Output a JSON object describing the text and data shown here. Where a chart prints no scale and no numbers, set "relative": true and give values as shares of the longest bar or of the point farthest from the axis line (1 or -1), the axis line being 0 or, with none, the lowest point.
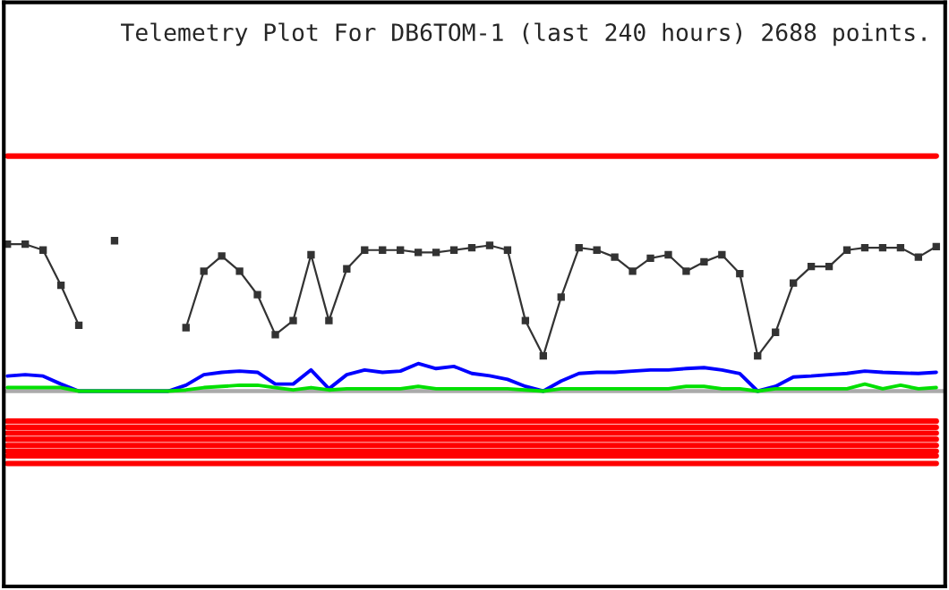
{
  "chart_data": {
    "type": "line",
    "title": "Telemetry Plot For DB6TOM-1 (last 240 hours) 2688 points.",
    "relative": true,
    "legend": false,
    "categories": [
      null,
      null,
      null,
      null,
      null,
      null,
      null,
      null,
      null,
      null,
      null,
      null,
      null,
      null,
      null,
      null,
      null,
      null,
      null,
      null,
      null,
      null,
      null,
      null,
      null,
      null,
      null,
      null,
      null,
      null,
      null,
      null,
      null,
      null,
      null,
      null,
      null,
      null,
      null,
      null,
      null,
      null,
      null,
      null,
      null,
      null,
      null,
      null,
      null,
      null,
      null,
      null,
      null
    ],
    "series": [
      {
        "color": "#ff0000",
        "values": [
          1,
          1,
          1,
          1,
          1,
          1,
          1,
          1,
          1,
          1,
          1,
          1,
          1,
          1,
          1,
          1,
          1,
          1,
          1,
          1,
          1,
          1,
          1,
          1,
          1,
          1,
          1,
          1,
          1,
          1,
          1,
          1,
          1,
          1,
          1,
          1,
          1,
          1,
          1,
          1,
          1,
          1,
          1,
          1,
          1,
          1,
          1,
          1,
          1,
          1,
          1,
          1,
          1
        ]
      },
      {
        "color": "#333333",
        "marker": "square",
        "values": [
          0.625,
          0.625,
          0.6,
          0.45,
          0.28,
          null,
          0.64,
          null,
          null,
          null,
          0.27,
          0.51,
          0.575,
          0.51,
          0.41,
          0.24,
          0.3,
          0.58,
          0.3,
          0.52,
          0.6,
          0.6,
          0.6,
          0.59,
          0.59,
          0.6,
          0.61,
          0.62,
          0.6,
          0.3,
          0.15,
          0.4,
          0.61,
          0.6,
          0.57,
          0.51,
          0.565,
          0.58,
          0.51,
          0.55,
          0.58,
          0.5,
          0.15,
          0.25,
          0.46,
          0.53,
          0.53,
          0.6,
          0.61,
          0.61,
          0.61,
          0.57,
          0.615
        ]
      },
      {
        "color": "#0000ff",
        "values": [
          0.064,
          0.07,
          0.064,
          0.03,
          0,
          0,
          0,
          0,
          0,
          0,
          0.025,
          0.07,
          0.08,
          0.085,
          0.08,
          0.03,
          0.03,
          0.09,
          0.01,
          0.07,
          0.09,
          0.08,
          0.085,
          0.117,
          0.096,
          0.105,
          0.075,
          0.065,
          0.05,
          0.02,
          0,
          0.043,
          0.075,
          0.08,
          0.08,
          0.085,
          0.09,
          0.09,
          0.096,
          0.1,
          0.09,
          0.075,
          0,
          0.02,
          0.06,
          0.064,
          0.07,
          0.075,
          0.085,
          0.08,
          0.077,
          0.075,
          0.08
        ]
      },
      {
        "color": "#00e000",
        "values": [
          0.015,
          0.015,
          0.015,
          0.015,
          0,
          0,
          0,
          0,
          0,
          0,
          0.005,
          0.015,
          0.02,
          0.025,
          0.025,
          0.015,
          0.005,
          0.015,
          0.005,
          0.01,
          0.01,
          0.01,
          0.01,
          0.02,
          0.01,
          0.01,
          0.01,
          0.01,
          0.01,
          0.005,
          0,
          0.01,
          0.01,
          0.01,
          0.01,
          0.01,
          0.01,
          0.01,
          0.02,
          0.02,
          0.01,
          0.01,
          0,
          0.01,
          0.01,
          0.01,
          0.01,
          0.01,
          0.03,
          0.01,
          0.025,
          0.01,
          0.015
        ]
      },
      {
        "color": "#ff0000",
        "values": [
          -0.128,
          -0.128,
          -0.128,
          -0.128,
          -0.128,
          -0.128,
          -0.128,
          -0.128,
          -0.128,
          -0.128,
          -0.128,
          -0.128,
          -0.128,
          -0.128,
          -0.128,
          -0.128,
          -0.128,
          -0.128,
          -0.128,
          -0.128,
          -0.128,
          -0.128,
          -0.128,
          -0.128,
          -0.128,
          -0.128,
          -0.128,
          -0.128,
          -0.128,
          -0.128,
          -0.128,
          -0.128,
          -0.128,
          -0.128,
          -0.128,
          -0.128,
          -0.128,
          -0.128,
          -0.128,
          -0.128,
          -0.128,
          -0.128,
          -0.128,
          -0.128,
          -0.128,
          -0.128,
          -0.128,
          -0.128,
          -0.128,
          -0.128,
          -0.128,
          -0.128,
          -0.128
        ]
      },
      {
        "color": "#ff0000",
        "values": [
          -0.154,
          -0.154,
          -0.154,
          -0.154,
          -0.154,
          -0.154,
          -0.154,
          -0.154,
          -0.154,
          -0.154,
          -0.154,
          -0.154,
          -0.154,
          -0.154,
          -0.154,
          -0.154,
          -0.154,
          -0.154,
          -0.154,
          -0.154,
          -0.154,
          -0.154,
          -0.154,
          -0.154,
          -0.154,
          -0.154,
          -0.154,
          -0.154,
          -0.154,
          -0.154,
          -0.154,
          -0.154,
          -0.154,
          -0.154,
          -0.154,
          -0.154,
          -0.154,
          -0.154,
          -0.154,
          -0.154,
          -0.154,
          -0.154,
          -0.154,
          -0.154,
          -0.154,
          -0.154,
          -0.154,
          -0.154,
          -0.154,
          -0.154,
          -0.154,
          -0.154,
          -0.154
        ]
      },
      {
        "color": "#ff0000",
        "values": [
          -0.179,
          -0.179,
          -0.179,
          -0.179,
          -0.179,
          -0.179,
          -0.179,
          -0.179,
          -0.179,
          -0.179,
          -0.179,
          -0.179,
          -0.179,
          -0.179,
          -0.179,
          -0.179,
          -0.179,
          -0.179,
          -0.179,
          -0.179,
          -0.179,
          -0.179,
          -0.179,
          -0.179,
          -0.179,
          -0.179,
          -0.179,
          -0.179,
          -0.179,
          -0.179,
          -0.179,
          -0.179,
          -0.179,
          -0.179,
          -0.179,
          -0.179,
          -0.179,
          -0.179,
          -0.179,
          -0.179,
          -0.179,
          -0.179,
          -0.179,
          -0.179,
          -0.179,
          -0.179,
          -0.179,
          -0.179,
          -0.179,
          -0.179,
          -0.179,
          -0.179,
          -0.179
        ]
      },
      {
        "color": "#ff0000",
        "values": [
          -0.205,
          -0.205,
          -0.205,
          -0.205,
          -0.205,
          -0.205,
          -0.205,
          -0.205,
          -0.205,
          -0.205,
          -0.205,
          -0.205,
          -0.205,
          -0.205,
          -0.205,
          -0.205,
          -0.205,
          -0.205,
          -0.205,
          -0.205,
          -0.205,
          -0.205,
          -0.205,
          -0.205,
          -0.205,
          -0.205,
          -0.205,
          -0.205,
          -0.205,
          -0.205,
          -0.205,
          -0.205,
          -0.205,
          -0.205,
          -0.205,
          -0.205,
          -0.205,
          -0.205,
          -0.205,
          -0.205,
          -0.205,
          -0.205,
          -0.205,
          -0.205,
          -0.205,
          -0.205,
          -0.205,
          -0.205,
          -0.205,
          -0.205,
          -0.205,
          -0.205,
          -0.205
        ]
      },
      {
        "color": "#ff0000",
        "values": [
          -0.231,
          -0.231,
          -0.231,
          -0.231,
          -0.231,
          -0.231,
          -0.231,
          -0.231,
          -0.231,
          -0.231,
          -0.231,
          -0.231,
          -0.231,
          -0.231,
          -0.231,
          -0.231,
          -0.231,
          -0.231,
          -0.231,
          -0.231,
          -0.231,
          -0.231,
          -0.231,
          -0.231,
          -0.231,
          -0.231,
          -0.231,
          -0.231,
          -0.231,
          -0.231,
          -0.231,
          -0.231,
          -0.231,
          -0.231,
          -0.231,
          -0.231,
          -0.231,
          -0.231,
          -0.231,
          -0.231,
          -0.231,
          -0.231,
          -0.231,
          -0.231,
          -0.231,
          -0.231,
          -0.231,
          -0.231,
          -0.231,
          -0.231,
          -0.231,
          -0.231,
          -0.231
        ]
      },
      {
        "color": "#ff0000",
        "values": [
          -0.256,
          -0.256,
          -0.256,
          -0.256,
          -0.256,
          -0.256,
          -0.256,
          -0.256,
          -0.256,
          -0.256,
          -0.256,
          -0.256,
          -0.256,
          -0.256,
          -0.256,
          -0.256,
          -0.256,
          -0.256,
          -0.256,
          -0.256,
          -0.256,
          -0.256,
          -0.256,
          -0.256,
          -0.256,
          -0.256,
          -0.256,
          -0.256,
          -0.256,
          -0.256,
          -0.256,
          -0.256,
          -0.256,
          -0.256,
          -0.256,
          -0.256,
          -0.256,
          -0.256,
          -0.256,
          -0.256,
          -0.256,
          -0.256,
          -0.256,
          -0.256,
          -0.256,
          -0.256,
          -0.256,
          -0.256,
          -0.256,
          -0.256,
          -0.256,
          -0.256,
          -0.256
        ]
      },
      {
        "color": "#ff0000",
        "values": [
          -0.276,
          -0.276,
          -0.276,
          -0.276,
          -0.276,
          -0.276,
          -0.276,
          -0.276,
          -0.276,
          -0.276,
          -0.276,
          -0.276,
          -0.276,
          -0.276,
          -0.276,
          -0.276,
          -0.276,
          -0.276,
          -0.276,
          -0.276,
          -0.276,
          -0.276,
          -0.276,
          -0.276,
          -0.276,
          -0.276,
          -0.276,
          -0.276,
          -0.276,
          -0.276,
          -0.276,
          -0.276,
          -0.276,
          -0.276,
          -0.276,
          -0.276,
          -0.276,
          -0.276,
          -0.276,
          -0.276,
          -0.276,
          -0.276,
          -0.276,
          -0.276,
          -0.276,
          -0.276,
          -0.276,
          -0.276,
          -0.276,
          -0.276,
          -0.276,
          -0.276,
          -0.276
        ]
      },
      {
        "color": "#ff0000",
        "values": [
          -0.308,
          -0.308,
          -0.308,
          -0.308,
          -0.308,
          -0.308,
          -0.308,
          -0.308,
          -0.308,
          -0.308,
          -0.308,
          -0.308,
          -0.308,
          -0.308,
          -0.308,
          -0.308,
          -0.308,
          -0.308,
          -0.308,
          -0.308,
          -0.308,
          -0.308,
          -0.308,
          -0.308,
          -0.308,
          -0.308,
          -0.308,
          -0.308,
          -0.308,
          -0.308,
          -0.308,
          -0.308,
          -0.308,
          -0.308,
          -0.308,
          -0.308,
          -0.308,
          -0.308,
          -0.308,
          -0.308,
          -0.308,
          -0.308,
          -0.308,
          -0.308,
          -0.308,
          -0.308,
          -0.308,
          -0.308,
          -0.308,
          -0.308,
          -0.308,
          -0.308,
          -0.308
        ]
      }
    ]
  }
}
